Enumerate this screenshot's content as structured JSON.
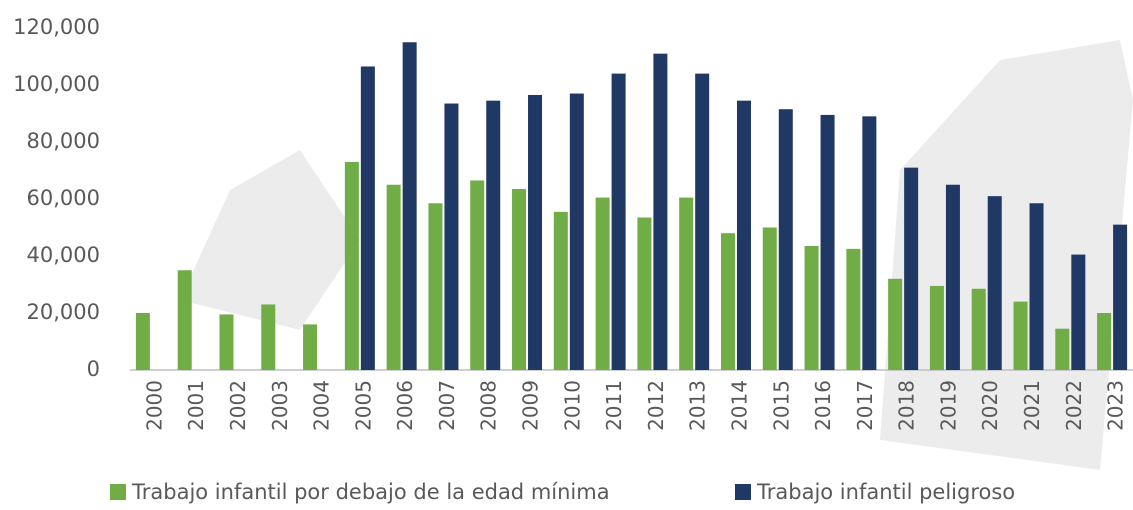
{
  "chart_data": {
    "type": "bar",
    "categories": [
      "2000",
      "2001",
      "2002",
      "2003",
      "2004",
      "2005",
      "2006",
      "2007",
      "2008",
      "2009",
      "2010",
      "2011",
      "2012",
      "2013",
      "2014",
      "2015",
      "2016",
      "2017",
      "2018",
      "2019",
      "2020",
      "2021",
      "2022",
      "2023"
    ],
    "series": [
      {
        "name": "Trabajo infantil por debajo de la edad mínima",
        "color": "#70ad47",
        "values": [
          20000,
          35000,
          19500,
          23000,
          16000,
          73000,
          65000,
          58500,
          66500,
          63500,
          55500,
          60500,
          53500,
          60500,
          48000,
          50000,
          43500,
          42500,
          32000,
          29500,
          28500,
          24000,
          14500,
          20000
        ]
      },
      {
        "name": "Trabajo infantil peligroso",
        "color": "#203864",
        "values": [
          null,
          null,
          null,
          null,
          null,
          106500,
          115000,
          93500,
          94500,
          96500,
          97000,
          104000,
          111000,
          104000,
          94500,
          91500,
          89500,
          89000,
          71000,
          65000,
          61000,
          58500,
          40500,
          51000
        ]
      }
    ],
    "ylim": [
      0,
      120000
    ],
    "yticks": [
      0,
      {
        "value": 20000,
        "label": "20,000"
      },
      {
        "value": 40000,
        "label": "40,000"
      },
      {
        "value": 60000,
        "label": "60,000"
      },
      {
        "value": 80000,
        "label": "80,000"
      },
      {
        "value": 100000,
        "label": "100,000"
      },
      {
        "value": 120000,
        "label": "120,000"
      }
    ],
    "grid": false
  }
}
